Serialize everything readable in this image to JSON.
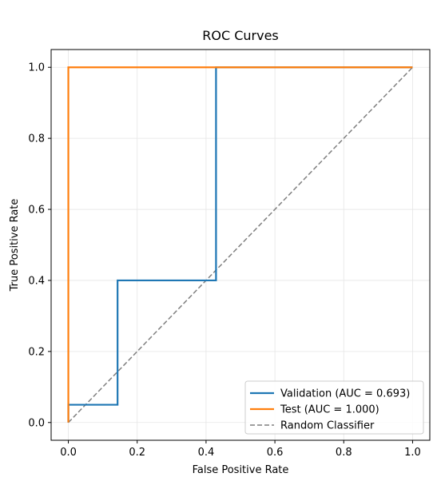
{
  "chart_data": {
    "type": "line",
    "title": "ROC Curves",
    "xlabel": "False Positive Rate",
    "ylabel": "True Positive Rate",
    "xlim": [
      -0.05,
      1.05
    ],
    "ylim": [
      -0.05,
      1.05
    ],
    "x_ticks": [
      0.0,
      0.2,
      0.4,
      0.6,
      0.8,
      1.0
    ],
    "y_ticks": [
      0.0,
      0.2,
      0.4,
      0.6,
      0.8,
      1.0
    ],
    "x_tick_labels": [
      "0.0",
      "0.2",
      "0.4",
      "0.6",
      "0.8",
      "1.0"
    ],
    "y_tick_labels": [
      "0.0",
      "0.2",
      "0.4",
      "0.6",
      "0.8",
      "1.0"
    ],
    "grid": true,
    "legend_position": "lower-right",
    "series": [
      {
        "name": "Validation (AUC = 0.693)",
        "color": "#1f77b4",
        "style": "solid",
        "x": [
          0.0,
          0.0,
          0.143,
          0.143,
          0.429,
          0.429,
          1.0
        ],
        "y": [
          0.0,
          0.05,
          0.05,
          0.4,
          0.4,
          1.0,
          1.0
        ]
      },
      {
        "name": "Test (AUC = 1.000)",
        "color": "#ff7f0e",
        "style": "solid",
        "x": [
          0.0,
          0.0,
          1.0
        ],
        "y": [
          0.0,
          1.0,
          1.0
        ]
      },
      {
        "name": "Random Classifier",
        "color": "#7f7f7f",
        "style": "dashed",
        "x": [
          0.0,
          1.0
        ],
        "y": [
          0.0,
          1.0
        ]
      }
    ]
  }
}
